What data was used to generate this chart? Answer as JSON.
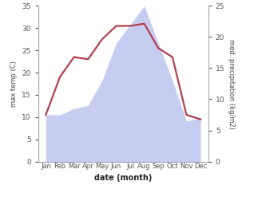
{
  "months": [
    "Jan",
    "Feb",
    "Mar",
    "Apr",
    "May",
    "Jun",
    "Jul",
    "Aug",
    "Sep",
    "Oct",
    "Nov",
    "Dec"
  ],
  "temperature": [
    10.5,
    19.0,
    23.5,
    23.0,
    27.5,
    30.5,
    30.5,
    31.0,
    25.5,
    23.5,
    10.5,
    9.5
  ],
  "precipitation": [
    7.5,
    7.5,
    8.5,
    9.0,
    13.0,
    19.0,
    22.0,
    25.0,
    19.0,
    13.0,
    6.5,
    7.0
  ],
  "temp_color": "#b04050",
  "precip_fill_color": "#bcc5ef",
  "temp_ylim": [
    0,
    35
  ],
  "precip_ylim": [
    0,
    25
  ],
  "xlabel": "date (month)",
  "ylabel_left": "max temp (C)",
  "ylabel_right": "med. precipitation (kg/m2)",
  "left_ticks": [
    0,
    5,
    10,
    15,
    20,
    25,
    30,
    35
  ],
  "right_ticks": [
    0,
    5,
    10,
    15,
    20,
    25
  ],
  "bg_color": "#ffffff",
  "spine_color": "#aaaaaa",
  "tick_color": "#555555",
  "label_color": "#444444"
}
